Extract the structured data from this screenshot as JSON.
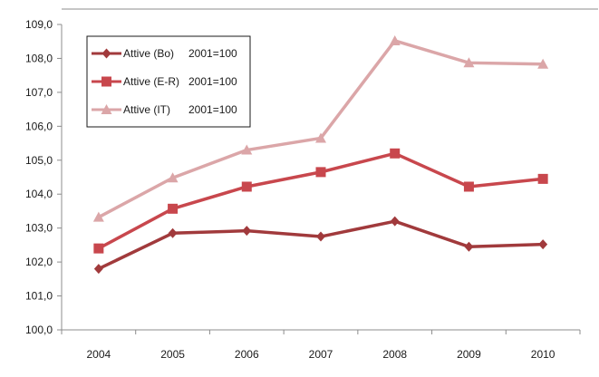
{
  "chart_data": {
    "type": "line",
    "title": "",
    "xlabel": "",
    "ylabel": "",
    "categories": [
      "2004",
      "2005",
      "2006",
      "2007",
      "2008",
      "2009",
      "2010"
    ],
    "ylim": [
      100,
      109
    ],
    "ytick_step": 1,
    "ytick_labels": [
      "100,0",
      "101,0",
      "102,0",
      "103,0",
      "104,0",
      "105,0",
      "106,0",
      "107,0",
      "108,0",
      "109,0"
    ],
    "grid": "none",
    "legend_position": "top-left-inside",
    "series": [
      {
        "name": "Attive (Bo)",
        "base_label": "2001=100",
        "marker": "diamond",
        "color": "#a13a3c",
        "values": [
          101.8,
          102.85,
          102.92,
          102.75,
          103.2,
          102.45,
          102.52
        ]
      },
      {
        "name": "Attive (E-R)",
        "base_label": "2001=100",
        "marker": "square",
        "color": "#c8474d",
        "values": [
          102.4,
          103.57,
          104.22,
          104.65,
          105.2,
          104.22,
          104.45
        ]
      },
      {
        "name": "Attive (IT)",
        "base_label": "2001=100",
        "marker": "triangle",
        "color": "#dba6a8",
        "values": [
          103.32,
          104.48,
          105.3,
          105.65,
          108.52,
          107.87,
          107.83
        ]
      }
    ]
  }
}
